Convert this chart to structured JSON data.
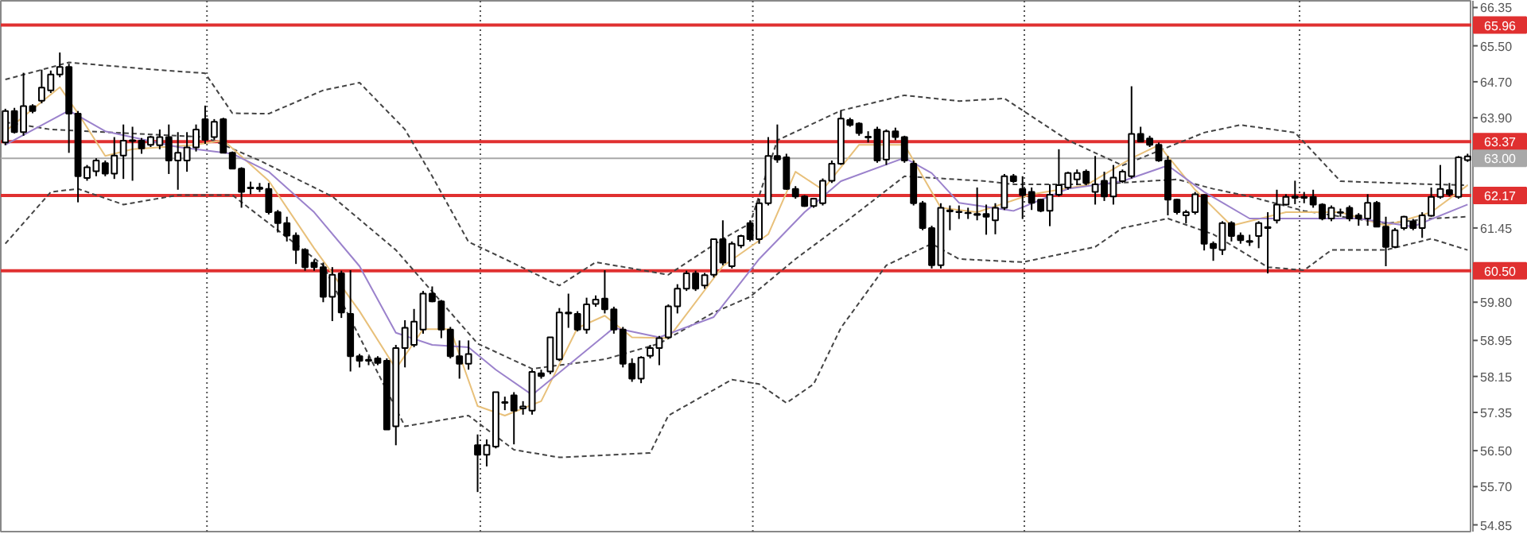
{
  "chart_data": {
    "type": "candlestick",
    "categories": [
      null,
      null,
      null,
      null,
      null,
      null,
      null,
      null,
      null,
      null,
      null,
      null,
      null,
      null,
      null,
      null,
      null,
      null,
      null,
      null,
      null,
      null,
      null,
      null,
      null,
      null,
      null,
      null,
      null,
      null,
      null,
      null,
      null,
      null,
      null,
      null,
      null,
      null,
      null,
      null,
      null,
      null,
      null,
      null,
      null,
      null,
      null,
      null,
      null,
      null,
      null,
      null,
      null,
      null,
      null,
      null,
      null,
      null,
      null,
      null,
      null,
      null,
      null,
      null,
      null,
      null,
      null,
      null,
      null,
      null,
      null,
      null,
      null,
      null,
      null,
      null,
      null,
      null,
      null,
      null,
      null,
      null,
      null,
      null,
      null,
      null,
      null,
      null,
      null,
      null,
      null,
      null,
      null,
      null,
      null,
      null,
      null,
      null,
      null,
      null,
      null,
      null,
      null,
      null,
      null,
      null,
      null,
      null,
      null,
      null,
      null,
      null,
      null,
      null,
      null,
      null,
      null,
      null,
      null,
      null,
      null,
      null,
      null,
      null,
      null,
      null,
      null,
      null,
      null,
      null,
      null,
      null,
      null,
      null,
      null,
      null,
      null,
      null,
      null,
      null,
      null,
      null,
      null,
      null,
      null,
      null,
      null,
      null,
      null,
      null,
      null,
      null,
      null,
      null,
      null,
      null,
      null,
      null,
      null,
      null,
      null,
      null
    ],
    "ohlc": [
      [
        63.35,
        64.1,
        63.29,
        64.05
      ],
      [
        64.05,
        64.12,
        63.55,
        63.58
      ],
      [
        63.58,
        64.9,
        63.5,
        64.16
      ],
      [
        64.16,
        64.2,
        64.0,
        64.05
      ],
      [
        64.28,
        64.97,
        64.22,
        64.57
      ],
      [
        64.51,
        64.95,
        64.45,
        64.86
      ],
      [
        64.86,
        65.35,
        64.8,
        65.03
      ],
      [
        65.03,
        65.1,
        63.12,
        63.99
      ],
      [
        63.99,
        64.05,
        62.02,
        62.6
      ],
      [
        62.56,
        62.85,
        62.5,
        62.8
      ],
      [
        62.71,
        63.0,
        62.6,
        62.95
      ],
      [
        62.89,
        62.95,
        62.6,
        62.66
      ],
      [
        62.66,
        63.47,
        62.54,
        63.06
      ],
      [
        63.06,
        63.75,
        62.54,
        63.39
      ],
      [
        63.38,
        63.7,
        62.5,
        63.4
      ],
      [
        63.39,
        63.45,
        63.1,
        63.22
      ],
      [
        63.3,
        63.5,
        63.25,
        63.47
      ],
      [
        63.29,
        63.64,
        63.2,
        63.47
      ],
      [
        63.47,
        63.75,
        62.65,
        62.95
      ],
      [
        62.95,
        63.58,
        62.3,
        63.12
      ],
      [
        62.95,
        63.58,
        62.7,
        63.24
      ],
      [
        63.24,
        63.75,
        63.15,
        63.64
      ],
      [
        63.87,
        64.17,
        63.32,
        63.41
      ],
      [
        63.47,
        63.87,
        63.41,
        63.81
      ],
      [
        63.87,
        63.9,
        63.12,
        63.12
      ],
      [
        63.12,
        63.15,
        62.77,
        62.77
      ],
      [
        62.77,
        62.8,
        61.9,
        62.25
      ],
      [
        62.33,
        62.48,
        62.2,
        62.35
      ],
      [
        62.35,
        62.45,
        62.25,
        62.32
      ],
      [
        62.32,
        62.45,
        61.75,
        61.8
      ],
      [
        61.8,
        61.85,
        61.35,
        61.56
      ],
      [
        61.56,
        61.7,
        61.15,
        61.28
      ],
      [
        61.28,
        61.35,
        60.65,
        60.96
      ],
      [
        60.96,
        61.0,
        60.5,
        60.58
      ],
      [
        60.68,
        60.75,
        60.5,
        60.58
      ],
      [
        60.58,
        60.68,
        59.8,
        59.92
      ],
      [
        59.92,
        60.58,
        59.38,
        60.41
      ],
      [
        60.44,
        60.5,
        59.45,
        59.57
      ],
      [
        59.54,
        60.51,
        58.26,
        58.6
      ],
      [
        58.6,
        58.65,
        58.35,
        58.5
      ],
      [
        58.52,
        58.6,
        58.4,
        58.5
      ],
      [
        58.55,
        58.6,
        58.4,
        58.45
      ],
      [
        58.5,
        58.55,
        56.97,
        56.97
      ],
      [
        57.04,
        58.85,
        56.62,
        58.78
      ],
      [
        58.78,
        59.4,
        58.35,
        59.23
      ],
      [
        58.85,
        59.65,
        58.8,
        59.37
      ],
      [
        59.19,
        60.05,
        59.1,
        59.99
      ],
      [
        59.99,
        60.15,
        59.8,
        59.82
      ],
      [
        59.82,
        59.85,
        59.0,
        59.19
      ],
      [
        59.19,
        59.25,
        58.55,
        58.6
      ],
      [
        58.6,
        58.95,
        58.1,
        58.43
      ],
      [
        58.43,
        58.95,
        58.3,
        58.65
      ],
      [
        56.62,
        56.86,
        55.58,
        56.41
      ],
      [
        56.41,
        56.75,
        56.15,
        56.62
      ],
      [
        56.59,
        57.8,
        56.55,
        57.8
      ],
      [
        57.58,
        57.7,
        57.4,
        57.56
      ],
      [
        57.73,
        57.8,
        56.64,
        57.39
      ],
      [
        57.44,
        57.6,
        57.3,
        57.48
      ],
      [
        57.39,
        58.3,
        57.3,
        58.25
      ],
      [
        58.22,
        58.3,
        58.1,
        58.16
      ],
      [
        58.26,
        59.02,
        58.2,
        59.02
      ],
      [
        58.53,
        59.67,
        58.49,
        59.57
      ],
      [
        59.55,
        59.99,
        59.23,
        59.57
      ],
      [
        59.54,
        59.6,
        59.15,
        59.19
      ],
      [
        59.19,
        59.9,
        59.1,
        59.75
      ],
      [
        59.76,
        59.95,
        59.7,
        59.86
      ],
      [
        59.88,
        60.51,
        59.55,
        59.64
      ],
      [
        59.64,
        59.7,
        59.1,
        59.19
      ],
      [
        59.19,
        59.25,
        58.35,
        58.43
      ],
      [
        58.43,
        58.55,
        58.03,
        58.1
      ],
      [
        58.1,
        58.6,
        58.0,
        58.57
      ],
      [
        58.61,
        58.85,
        58.55,
        58.78
      ],
      [
        58.78,
        59.05,
        58.4,
        59.0
      ],
      [
        59.02,
        59.75,
        58.98,
        59.71
      ],
      [
        59.71,
        60.2,
        59.55,
        60.1
      ],
      [
        60.1,
        60.5,
        60.05,
        60.44
      ],
      [
        60.44,
        60.5,
        60.05,
        60.1
      ],
      [
        60.17,
        60.45,
        60.1,
        60.4
      ],
      [
        60.41,
        61.2,
        60.35,
        61.2
      ],
      [
        61.2,
        61.62,
        60.62,
        60.68
      ],
      [
        60.6,
        61.15,
        60.55,
        61.1
      ],
      [
        61.06,
        61.3,
        61.0,
        61.27
      ],
      [
        61.56,
        61.62,
        61.15,
        61.2
      ],
      [
        61.2,
        62.1,
        61.1,
        62.0
      ],
      [
        62.0,
        63.47,
        61.95,
        63.05
      ],
      [
        63.05,
        63.75,
        62.9,
        62.97
      ],
      [
        63.02,
        63.1,
        62.3,
        62.32
      ],
      [
        62.32,
        62.38,
        62.1,
        62.15
      ],
      [
        62.15,
        62.18,
        61.92,
        61.94
      ],
      [
        61.94,
        62.12,
        61.9,
        62.1
      ],
      [
        62.0,
        62.55,
        61.95,
        62.5
      ],
      [
        62.5,
        62.95,
        62.45,
        62.88
      ],
      [
        62.88,
        64.06,
        62.85,
        63.88
      ],
      [
        63.85,
        63.9,
        63.7,
        63.74
      ],
      [
        63.77,
        63.8,
        63.5,
        63.56
      ],
      [
        63.46,
        63.6,
        63.35,
        63.48
      ],
      [
        63.64,
        63.7,
        62.9,
        62.95
      ],
      [
        62.97,
        63.64,
        62.85,
        63.6
      ],
      [
        63.6,
        63.68,
        63.4,
        63.47
      ],
      [
        63.47,
        63.5,
        62.9,
        62.95
      ],
      [
        62.88,
        62.95,
        61.95,
        62.0
      ],
      [
        62.0,
        62.05,
        61.4,
        61.45
      ],
      [
        61.45,
        61.5,
        60.55,
        60.62
      ],
      [
        60.62,
        62.0,
        60.55,
        61.9
      ],
      [
        61.82,
        61.95,
        61.4,
        61.84
      ],
      [
        61.8,
        61.95,
        61.65,
        61.81
      ],
      [
        61.78,
        61.9,
        61.65,
        61.79
      ],
      [
        61.76,
        62.35,
        61.62,
        61.74
      ],
      [
        61.76,
        61.97,
        61.3,
        61.7
      ],
      [
        61.62,
        62.0,
        61.31,
        61.9
      ],
      [
        61.9,
        62.65,
        61.85,
        62.6
      ],
      [
        62.6,
        62.65,
        62.45,
        62.49
      ],
      [
        62.32,
        62.6,
        61.65,
        62.18
      ],
      [
        62.25,
        62.35,
        61.85,
        62.01
      ],
      [
        62.08,
        62.1,
        61.8,
        61.83
      ],
      [
        61.83,
        62.42,
        61.49,
        62.19
      ],
      [
        62.19,
        63.2,
        62.15,
        62.4
      ],
      [
        62.35,
        62.7,
        62.3,
        62.67
      ],
      [
        62.53,
        62.75,
        62.4,
        62.67
      ],
      [
        62.7,
        62.75,
        62.4,
        62.45
      ],
      [
        62.25,
        63.05,
        61.97,
        62.42
      ],
      [
        62.5,
        62.7,
        62.05,
        62.15
      ],
      [
        62.15,
        62.85,
        61.97,
        62.57
      ],
      [
        62.49,
        62.75,
        62.45,
        62.7
      ],
      [
        62.6,
        64.6,
        62.55,
        63.54
      ],
      [
        63.54,
        63.7,
        63.36,
        63.37
      ],
      [
        63.44,
        63.5,
        63.25,
        63.3
      ],
      [
        63.3,
        63.35,
        62.92,
        62.95
      ],
      [
        62.95,
        63.05,
        61.73,
        62.08
      ],
      [
        62.08,
        62.1,
        61.75,
        61.8
      ],
      [
        61.73,
        61.85,
        61.55,
        61.8
      ],
      [
        61.8,
        62.25,
        61.75,
        62.2
      ],
      [
        62.18,
        62.2,
        60.95,
        61.1
      ],
      [
        61.1,
        61.15,
        60.72,
        61.0
      ],
      [
        60.96,
        61.6,
        60.85,
        61.56
      ],
      [
        61.56,
        61.6,
        61.15,
        61.27
      ],
      [
        61.28,
        61.35,
        61.1,
        61.18
      ],
      [
        61.16,
        61.3,
        61.05,
        61.14
      ],
      [
        61.27,
        61.6,
        61.0,
        61.56
      ],
      [
        61.45,
        61.8,
        60.44,
        61.47
      ],
      [
        61.62,
        62.3,
        61.55,
        61.97
      ],
      [
        61.97,
        62.2,
        61.95,
        62.14
      ],
      [
        62.12,
        62.5,
        61.98,
        62.15
      ],
      [
        62.14,
        62.25,
        62.0,
        62.12
      ],
      [
        62.14,
        62.3,
        61.9,
        61.97
      ],
      [
        61.97,
        62.0,
        61.62,
        61.66
      ],
      [
        61.66,
        61.95,
        61.6,
        61.9
      ],
      [
        61.8,
        61.88,
        61.7,
        61.79
      ],
      [
        61.9,
        61.95,
        61.6,
        61.66
      ],
      [
        61.73,
        61.78,
        61.5,
        61.66
      ],
      [
        61.66,
        62.2,
        61.5,
        62.01
      ],
      [
        62.01,
        62.05,
        61.48,
        61.48
      ],
      [
        61.48,
        61.7,
        60.6,
        61.03
      ],
      [
        61.03,
        61.45,
        61.0,
        61.4
      ],
      [
        61.45,
        61.72,
        61.4,
        61.7
      ],
      [
        61.6,
        61.65,
        61.4,
        61.45
      ],
      [
        61.45,
        61.8,
        61.23,
        61.73
      ],
      [
        61.72,
        62.35,
        61.7,
        62.14
      ],
      [
        62.14,
        62.85,
        62.1,
        62.32
      ],
      [
        62.29,
        62.45,
        62.15,
        62.2
      ],
      [
        62.14,
        63.05,
        62.1,
        63.02
      ],
      [
        62.96,
        63.1,
        62.92,
        63.04
      ]
    ],
    "series": [
      {
        "type": "line",
        "color": "#444444",
        "line_style": "dashed",
        "values": [
          64.75,
          null,
          null,
          null,
          null,
          null,
          null,
          65.13,
          null,
          null,
          null,
          null,
          null,
          null,
          null,
          null,
          null,
          64.96,
          null,
          null,
          null,
          null,
          64.89,
          null,
          null,
          64.0,
          null,
          null,
          null,
          63.99,
          null,
          null,
          null,
          null,
          null,
          64.51,
          null,
          null,
          null,
          64.68,
          null,
          null,
          null,
          null,
          63.64,
          null,
          null,
          62.6,
          null,
          null,
          null,
          61.14,
          null,
          null,
          null,
          60.76,
          null,
          null,
          null,
          null,
          null,
          60.17,
          null,
          null,
          null,
          60.69,
          null,
          null,
          null,
          null,
          null,
          null,
          null,
          60.41,
          null,
          null,
          null,
          null,
          null,
          61.21,
          null,
          null,
          61.55,
          null,
          null,
          63.4,
          null,
          null,
          null,
          null,
          null,
          null,
          64.06,
          null,
          null,
          null,
          null,
          null,
          null,
          64.4,
          null,
          null,
          null,
          null,
          null,
          64.27,
          null,
          null,
          null,
          null,
          64.33,
          null,
          null,
          null,
          null,
          null,
          null,
          63.4,
          null,
          null,
          null,
          null,
          null,
          62.84,
          null,
          null,
          null,
          null,
          null,
          null,
          null,
          null,
          63.57,
          null,
          null,
          null,
          63.74,
          null,
          null,
          null,
          null,
          null,
          63.57,
          null,
          null,
          null,
          null,
          62.49,
          null,
          null,
          null,
          null,
          null,
          null,
          null,
          null,
          null,
          62.42,
          null,
          null,
          null,
          62.4
        ]
      },
      {
        "type": "line",
        "color": "#444444",
        "line_style": "dashed",
        "values": [
          63.8,
          null,
          null,
          null,
          null,
          63.64,
          null,
          null,
          null,
          null,
          null,
          null,
          null,
          null,
          null,
          null,
          null,
          null,
          null,
          null,
          null,
          null,
          63.47,
          null,
          null,
          null,
          null,
          null,
          62.95,
          null,
          null,
          null,
          null,
          null,
          null,
          null,
          62.15,
          null,
          null,
          null,
          null,
          null,
          null,
          60.96,
          null,
          null,
          null,
          null,
          null,
          null,
          null,
          null,
          58.88,
          null,
          null,
          null,
          null,
          null,
          58.32,
          null,
          null,
          null,
          null,
          null,
          null,
          null,
          58.53,
          null,
          null,
          null,
          null,
          null,
          58.88,
          null,
          null,
          null,
          null,
          null,
          59.57,
          null,
          null,
          null,
          59.92,
          null,
          null,
          null,
          null,
          60.76,
          null,
          null,
          null,
          null,
          null,
          61.66,
          null,
          null,
          null,
          null,
          null,
          62.6,
          null,
          null,
          null,
          null,
          null,
          null,
          null,
          null,
          62.49,
          null,
          null,
          62.42,
          null,
          null,
          null,
          null,
          null,
          null,
          null,
          null,
          62.42,
          null,
          null,
          null,
          null,
          null,
          null,
          null,
          null,
          62.53,
          null,
          null,
          null,
          62.32,
          null,
          null,
          null,
          62.15,
          null,
          null,
          null,
          null,
          null,
          61.83,
          null,
          null,
          null,
          null,
          null,
          null,
          null,
          null,
          61.55,
          null,
          null,
          null,
          null,
          61.66,
          null,
          null,
          null,
          61.7
        ]
      },
      {
        "type": "line",
        "color": "#444444",
        "line_style": "dashed",
        "values": [
          61.1,
          null,
          null,
          null,
          null,
          62.25,
          null,
          null,
          62.32,
          null,
          null,
          null,
          null,
          61.97,
          null,
          null,
          null,
          null,
          null,
          62.18,
          null,
          null,
          null,
          null,
          null,
          62.18,
          null,
          null,
          null,
          null,
          null,
          null,
          null,
          null,
          null,
          60.62,
          null,
          null,
          null,
          null,
          null,
          null,
          null,
          null,
          57.04,
          null,
          null,
          null,
          null,
          null,
          null,
          57.28,
          null,
          null,
          null,
          null,
          56.52,
          null,
          null,
          null,
          null,
          56.35,
          null,
          null,
          null,
          null,
          null,
          null,
          null,
          null,
          null,
          56.45,
          null,
          57.28,
          null,
          null,
          null,
          null,
          null,
          null,
          58.08,
          null,
          null,
          57.98,
          null,
          null,
          57.56,
          null,
          null,
          57.98,
          null,
          null,
          59.23,
          null,
          null,
          null,
          null,
          60.62,
          null,
          null,
          null,
          null,
          61.1,
          null,
          null,
          60.76,
          null,
          null,
          null,
          null,
          null,
          null,
          60.69,
          null,
          null,
          null,
          null,
          null,
          null,
          null,
          61.03,
          null,
          null,
          61.45,
          null,
          null,
          null,
          null,
          61.66,
          null,
          null,
          null,
          null,
          61.31,
          null,
          null,
          null,
          null,
          null,
          60.58,
          null,
          null,
          null,
          60.51,
          null,
          null,
          60.96,
          null,
          null,
          null,
          null,
          null,
          60.96,
          null,
          null,
          null,
          null,
          61.21,
          null,
          null,
          null,
          60.96
        ]
      },
      {
        "type": "line",
        "color": "#e8c07a",
        "line_style": "solid",
        "values": [
          63.6,
          null,
          null,
          null,
          null,
          null,
          64.58,
          null,
          64.0,
          null,
          null,
          63.05,
          null,
          null,
          63.2,
          null,
          null,
          null,
          null,
          null,
          null,
          63.3,
          null,
          null,
          63.4,
          null,
          null,
          null,
          null,
          62.5,
          null,
          null,
          null,
          null,
          61.0,
          null,
          null,
          null,
          null,
          59.6,
          null,
          null,
          null,
          58.32,
          null,
          null,
          59.2,
          null,
          null,
          59.2,
          null,
          null,
          57.49,
          null,
          null,
          57.28,
          null,
          null,
          null,
          57.6,
          null,
          null,
          null,
          59.23,
          null,
          null,
          59.5,
          null,
          null,
          59.02,
          null,
          null,
          null,
          59.0,
          null,
          null,
          null,
          null,
          null,
          60.6,
          null,
          null,
          null,
          null,
          61.31,
          null,
          null,
          62.7,
          null,
          null,
          62.3,
          null,
          null,
          null,
          63.3,
          null,
          null,
          null,
          null,
          63.3,
          null,
          null,
          null,
          61.9,
          null,
          null,
          null,
          61.8,
          null,
          null,
          null,
          null,
          null,
          62.2,
          null,
          null,
          null,
          null,
          null,
          62.4,
          null,
          null,
          null,
          null,
          63.0,
          null,
          null,
          63.29,
          null,
          null,
          null,
          62.3,
          null,
          null,
          null,
          61.5,
          null,
          null,
          null,
          null,
          null,
          61.8,
          null,
          null,
          null,
          null,
          null,
          61.8,
          null,
          null,
          null,
          null,
          61.5,
          null,
          null,
          null,
          null,
          61.8,
          null,
          null,
          null,
          62.4
        ]
      },
      {
        "type": "line",
        "color": "#9b82cc",
        "line_style": "solid",
        "values": [
          63.3,
          null,
          null,
          null,
          null,
          null,
          null,
          64.06,
          null,
          null,
          null,
          63.6,
          null,
          null,
          null,
          null,
          null,
          null,
          null,
          63.25,
          null,
          null,
          null,
          null,
          null,
          63.1,
          null,
          null,
          null,
          62.7,
          null,
          null,
          null,
          null,
          61.8,
          null,
          null,
          null,
          null,
          60.6,
          null,
          null,
          null,
          59.12,
          null,
          null,
          null,
          58.85,
          null,
          null,
          null,
          58.8,
          null,
          null,
          58.3,
          null,
          null,
          null,
          57.74,
          null,
          null,
          null,
          null,
          null,
          null,
          null,
          null,
          59.23,
          null,
          null,
          null,
          null,
          59.02,
          null,
          null,
          null,
          null,
          null,
          59.47,
          null,
          null,
          null,
          null,
          60.76,
          null,
          null,
          null,
          null,
          61.8,
          null,
          null,
          null,
          62.49,
          null,
          null,
          null,
          null,
          null,
          null,
          63.01,
          null,
          null,
          62.67,
          null,
          null,
          62.01,
          null,
          null,
          null,
          null,
          null,
          61.83,
          null,
          null,
          null,
          null,
          null,
          62.32,
          null,
          null,
          null,
          null,
          null,
          62.49,
          null,
          null,
          null,
          null,
          62.84,
          null,
          null,
          null,
          62.25,
          null,
          null,
          null,
          null,
          61.66,
          null,
          null,
          null,
          null,
          null,
          61.66,
          null,
          null,
          null,
          null,
          null,
          61.66,
          null,
          null,
          null,
          null,
          null,
          61.48,
          null,
          null,
          null,
          null,
          null,
          61.97
        ]
      }
    ],
    "ylim": [
      54.7,
      66.5
    ],
    "yticks": [
      66.35,
      {
        "value": 65.5,
        "label": "65.50"
      },
      {
        "value": 64.7,
        "label": "64.70"
      },
      {
        "value": 63.9,
        "label": "63.90"
      },
      61.45,
      {
        "value": 59.8,
        "label": "59.80"
      },
      58.95,
      58.15,
      57.35,
      {
        "value": 56.5,
        "label": "56.50"
      },
      {
        "value": 55.7,
        "label": "55.70"
      },
      54.85
    ],
    "tick_labels": "y",
    "ref_lines": [
      {
        "axis": "y",
        "value": 65.96,
        "label": "65.96",
        "color": "#e03030"
      },
      {
        "axis": "y",
        "value": 63.37,
        "label": "63.37",
        "color": "#e03030"
      },
      {
        "axis": "y",
        "value": 63.0,
        "label": "63.00",
        "color": "#a8a8a8"
      },
      {
        "axis": "y",
        "value": 62.17,
        "label": "62.17",
        "color": "#e03030"
      },
      {
        "axis": "y",
        "value": 60.5,
        "label": "60.50",
        "color": "#e03030"
      }
    ]
  }
}
